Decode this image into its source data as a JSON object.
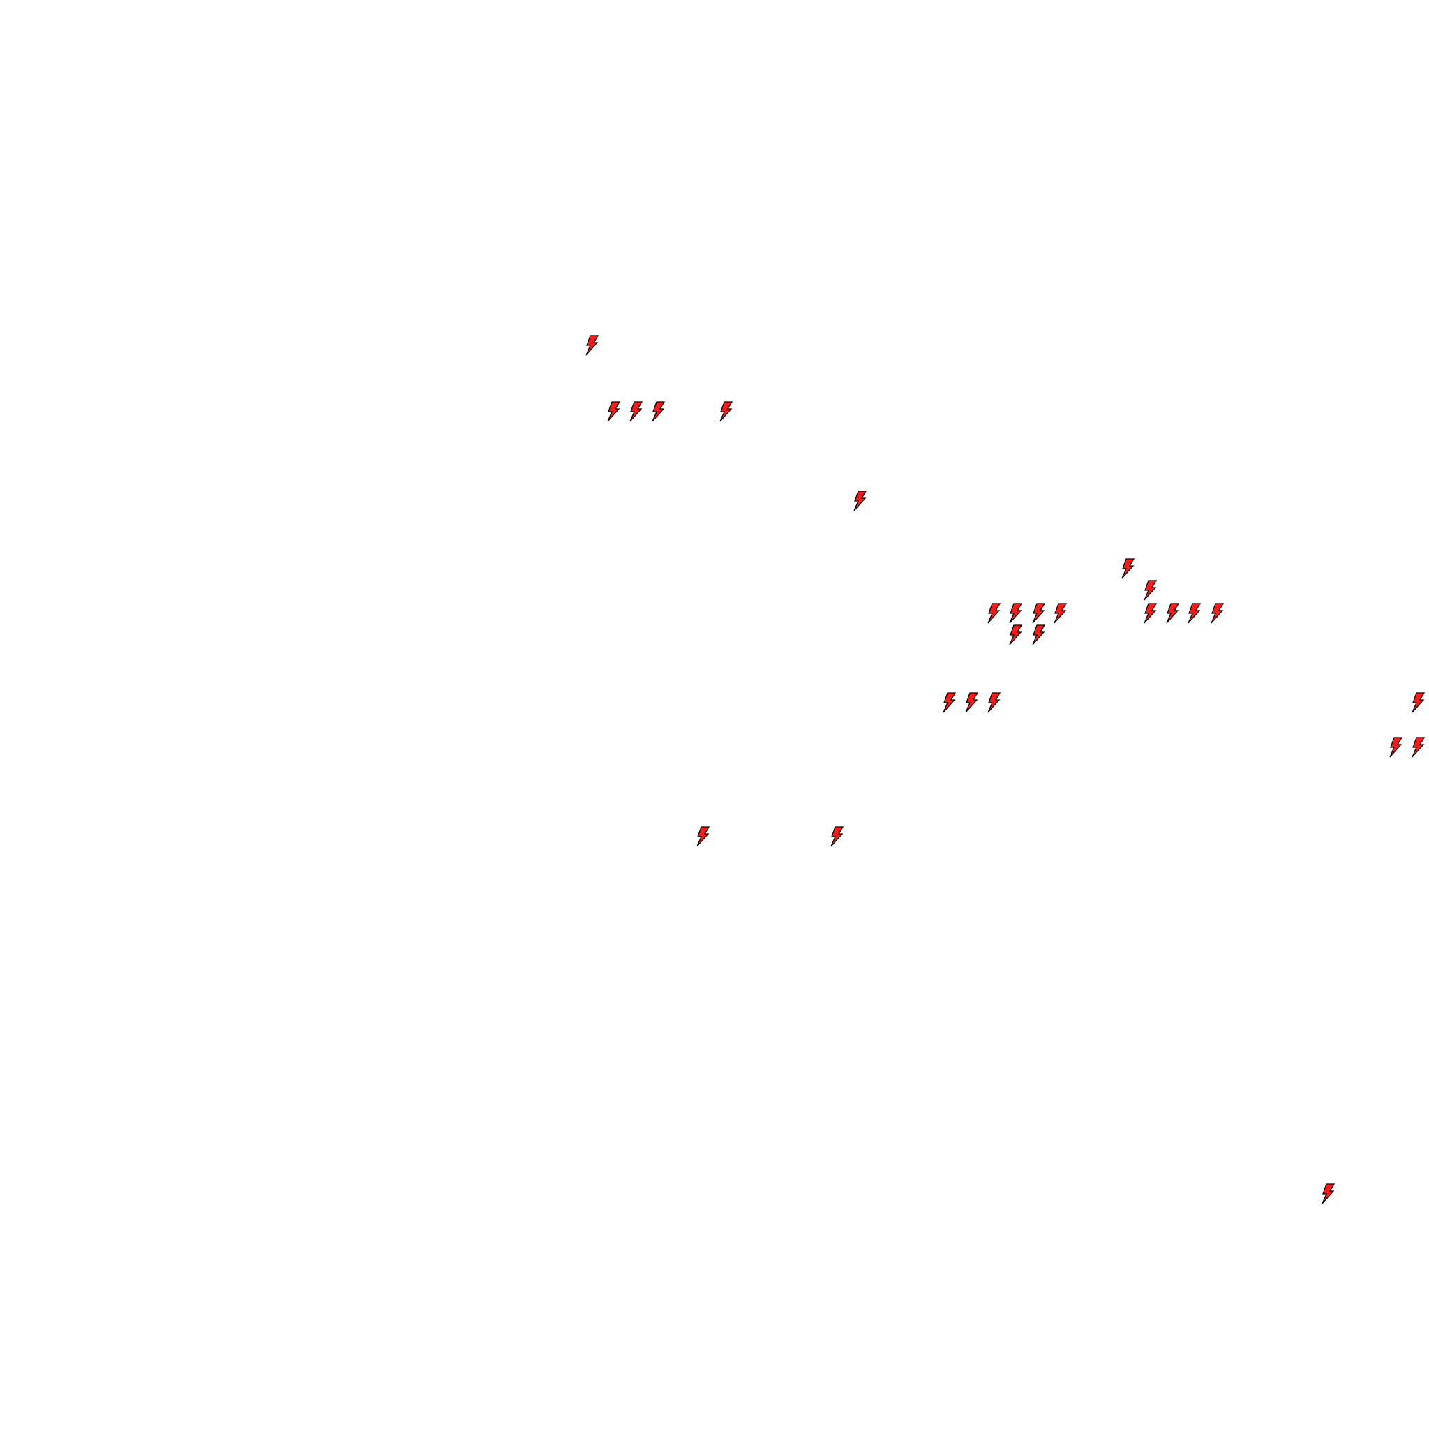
{
  "map": {
    "background": "#ffffff",
    "marker_icon": "lightning-bolt-icon",
    "marker_fill": "#ff1a1a",
    "marker_stroke": "#000000",
    "marker_count": 27
  }
}
